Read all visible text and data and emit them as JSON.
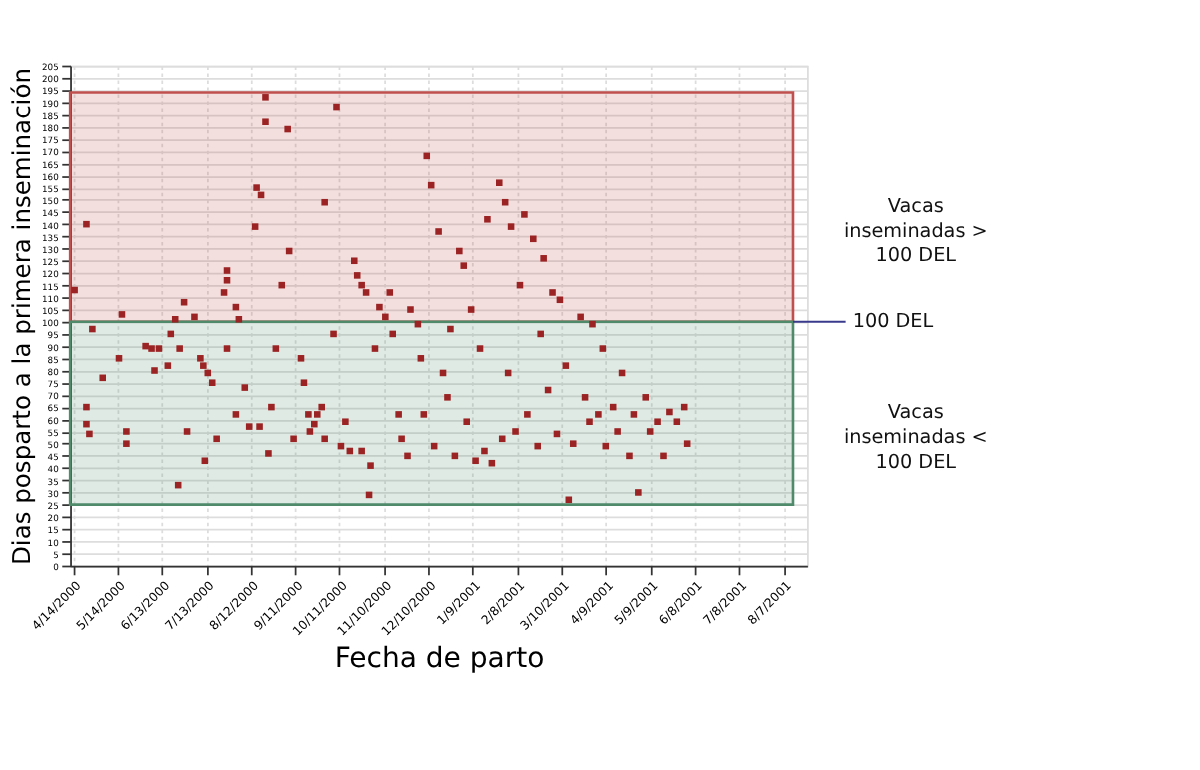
{
  "chart_data": {
    "type": "scatter",
    "xlabel": "Fecha de parto",
    "ylabel": "Dias posparto a la primera inseminación",
    "xlim": [
      "2000-04-12",
      "2001-08-23"
    ],
    "xticks": [
      {
        "value": "2000-04-14",
        "label": "4/14/2000"
      },
      {
        "value": "2000-05-14",
        "label": "5/14/2000"
      },
      {
        "value": "2000-06-13",
        "label": "6/13/2000"
      },
      {
        "value": "2000-07-13",
        "label": "7/13/2000"
      },
      {
        "value": "2000-08-12",
        "label": "8/12/2000"
      },
      {
        "value": "2000-09-11",
        "label": "9/11/2000"
      },
      {
        "value": "2000-10-11",
        "label": "10/11/2000"
      },
      {
        "value": "2000-11-10",
        "label": "11/10/2000"
      },
      {
        "value": "2000-12-10",
        "label": "12/10/2000"
      },
      {
        "value": "2001-01-09",
        "label": "1/9/2001"
      },
      {
        "value": "2001-02-08",
        "label": "2/8/2001"
      },
      {
        "value": "2001-03-10",
        "label": "3/10/2001"
      },
      {
        "value": "2001-04-09",
        "label": "4/9/2001"
      },
      {
        "value": "2001-05-09",
        "label": "5/9/2001"
      },
      {
        "value": "2001-06-08",
        "label": "6/8/2001"
      },
      {
        "value": "2001-07-08",
        "label": "7/8/2001"
      },
      {
        "value": "2001-08-07",
        "label": "8/7/2001"
      }
    ],
    "ylim": [
      0,
      205
    ],
    "yticks": [
      0,
      5,
      10,
      15,
      20,
      25,
      30,
      35,
      40,
      45,
      50,
      55,
      60,
      65,
      70,
      75,
      80,
      85,
      90,
      95,
      100,
      105,
      110,
      115,
      120,
      125,
      130,
      135,
      140,
      145,
      150,
      155,
      160,
      165,
      170,
      175,
      180,
      185,
      190,
      195,
      200,
      205
    ],
    "grid": true,
    "marker": "square",
    "bands": [
      {
        "axis": "y",
        "from": 100,
        "to": 194,
        "label": "Vacas inseminadas > 100 DEL",
        "color": "#c0504d"
      },
      {
        "axis": "y",
        "from": 25,
        "to": 100,
        "label": "Vacas inseminadas < 100 DEL",
        "color": "#4f8a6b"
      }
    ],
    "ref_lines": [
      {
        "axis": "y",
        "value": 100,
        "label": "100 DEL",
        "color": "#3a3a8c"
      }
    ],
    "series": [
      {
        "color": "#9b2323",
        "x": [
          "2000-04-15",
          "2000-04-23",
          "2000-04-23",
          "2000-04-23",
          "2000-04-25",
          "2000-04-27",
          "2000-05-17",
          "2000-05-04",
          "2000-05-15",
          "2000-05-20",
          "2000-05-20",
          "2000-06-02",
          "2000-06-06",
          "2000-06-11",
          "2000-06-08",
          "2000-06-17",
          "2000-06-22",
          "2000-06-19",
          "2000-06-25",
          "2000-06-30",
          "2000-06-28",
          "2000-07-05",
          "2000-07-09",
          "2000-07-11",
          "2000-07-14",
          "2000-07-17",
          "2000-07-12",
          "2000-06-24",
          "2000-07-20",
          "2000-07-25",
          "2000-07-27",
          "2000-07-27",
          "2000-08-02",
          "2000-08-02",
          "2000-08-04",
          "2000-07-27",
          "2000-08-08",
          "2000-08-11",
          "2000-08-18",
          "2000-08-16",
          "2000-08-19",
          "2000-08-22",
          "2000-08-22",
          "2000-08-15",
          "2000-08-26",
          "2000-08-24",
          "2000-08-29",
          "2000-09-02",
          "2000-09-06",
          "2000-09-07",
          "2000-09-10",
          "2000-09-15",
          "2000-09-17",
          "2000-09-20",
          "2000-09-21",
          "2000-09-26",
          "2000-09-24",
          "2000-09-29",
          "2000-10-01",
          "2000-10-01",
          "2000-10-07",
          "2000-10-09",
          "2000-10-12",
          "2000-10-15",
          "2000-10-18",
          "2000-10-21",
          "2000-10-23",
          "2000-10-26",
          "2000-10-29",
          "2000-10-26",
          "2000-10-31",
          "2000-11-01",
          "2000-11-04",
          "2000-11-07",
          "2000-11-11",
          "2000-11-14",
          "2000-11-16",
          "2000-11-20",
          "2000-11-22",
          "2000-11-26",
          "2000-11-28",
          "2000-12-03",
          "2000-12-05",
          "2000-12-07",
          "2000-12-09",
          "2000-12-12",
          "2000-12-14",
          "2000-12-17",
          "2000-12-20",
          "2000-12-23",
          "2000-12-25",
          "2000-12-28",
          "2000-12-31",
          "2001-01-03",
          "2001-01-05",
          "2001-01-08",
          "2001-01-11",
          "2001-01-14",
          "2001-01-17",
          "2001-01-19",
          "2001-01-22",
          "2001-01-27",
          "2001-01-29",
          "2001-01-31",
          "2001-02-02",
          "2001-02-04",
          "2001-02-07",
          "2001-02-10",
          "2001-02-13",
          "2001-02-15",
          "2001-02-19",
          "2001-02-22",
          "2001-02-24",
          "2001-02-26",
          "2001-03-01",
          "2001-03-04",
          "2001-03-07",
          "2001-03-09",
          "2001-03-13",
          "2001-03-15",
          "2001-03-18",
          "2001-03-23",
          "2001-03-26",
          "2001-03-29",
          "2001-03-31",
          "2001-04-04",
          "2001-04-07",
          "2001-04-09",
          "2001-04-14",
          "2001-04-17",
          "2001-04-20",
          "2001-04-25",
          "2001-04-28",
          "2001-05-01",
          "2001-05-06",
          "2001-05-09",
          "2001-05-14",
          "2001-05-18",
          "2001-05-22",
          "2001-05-27",
          "2001-06-01",
          "2001-06-03"
        ],
        "values": [
          113,
          140,
          65,
          58,
          54,
          97,
          103,
          77,
          85,
          55,
          50,
          90,
          89,
          89,
          80,
          82,
          101,
          95,
          89,
          55,
          108,
          102,
          85,
          82,
          79,
          75,
          43,
          33,
          52,
          112,
          121,
          117,
          106,
          62,
          101,
          89,
          73,
          57,
          57,
          155,
          152,
          192,
          182,
          139,
          65,
          46,
          89,
          115,
          179,
          129,
          52,
          85,
          75,
          62,
          55,
          62,
          58,
          65,
          52,
          149,
          95,
          188,
          49,
          59,
          47,
          125,
          119,
          115,
          112,
          47,
          29,
          41,
          89,
          106,
          102,
          112,
          95,
          62,
          52,
          45,
          105,
          99,
          85,
          62,
          168,
          156,
          49,
          137,
          79,
          69,
          97,
          45,
          129,
          123,
          59,
          105,
          43,
          89,
          47,
          142,
          42,
          157,
          52,
          149,
          79,
          139,
          55,
          115,
          144,
          62,
          134,
          49,
          95,
          126,
          72,
          112,
          54,
          109,
          82,
          27,
          50,
          102,
          69,
          59,
          99,
          62,
          89,
          49,
          65,
          55,
          79,
          45,
          62,
          30,
          69,
          55,
          59,
          45,
          63,
          59,
          65,
          50
        ]
      }
    ]
  }
}
